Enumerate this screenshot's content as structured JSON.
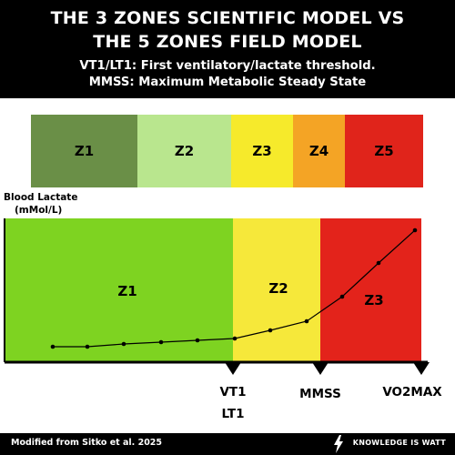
{
  "header": {
    "title_line1": "THE 3 ZONES SCIENTIFIC MODEL VS",
    "title_line2": "THE 5 ZONES FIELD MODEL",
    "subtitle_line1": "VT1/LT1: First ventilatory/lactate threshold.",
    "subtitle_line2": "MMSS: Maximum Metabolic Steady State"
  },
  "five_zones": [
    {
      "label": "Z1",
      "color": "#6a8f47"
    },
    {
      "label": "Z2",
      "color": "#b9e68e"
    },
    {
      "label": "Z3",
      "color": "#f6ea2b"
    },
    {
      "label": "Z4",
      "color": "#f4a425"
    },
    {
      "label": "Z5",
      "color": "#e0241b"
    }
  ],
  "three_zones": [
    {
      "label": "Z1",
      "color": "#7ed321"
    },
    {
      "label": "Z2",
      "color": "#f6e83a"
    },
    {
      "label": "Z3",
      "color": "#e3231b"
    }
  ],
  "y_axis_label": [
    "Blood Lactate",
    "(mMol/L)"
  ],
  "thresholds": {
    "vt1": "VT1",
    "lt1": "LT1",
    "mmss": "MMSS",
    "vo2max": "VO2MAX"
  },
  "footer": {
    "source": "Modified from Sitko et al. 2025",
    "brand": "KNOWLEDGE IS WATT"
  }
}
